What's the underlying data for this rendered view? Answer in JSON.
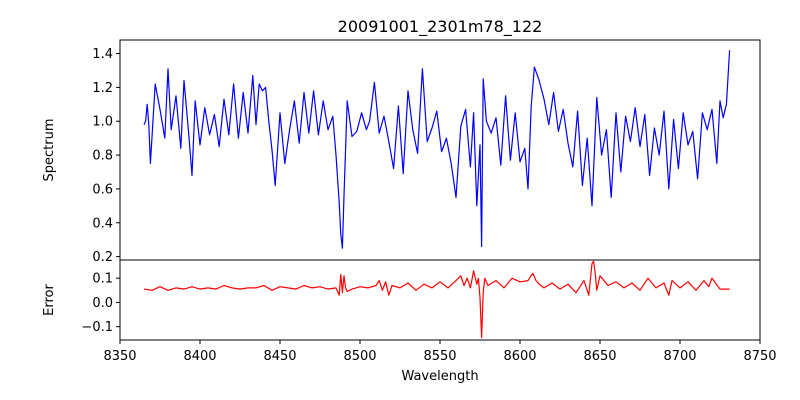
{
  "chart_data": {
    "type": "line",
    "title": "20091001_2301m78_122",
    "xlabel": "Wavelength",
    "xlim": [
      8350,
      8750
    ],
    "xticks": [
      8350,
      8400,
      8450,
      8500,
      8550,
      8600,
      8650,
      8700,
      8750
    ],
    "grid": false,
    "panels": [
      {
        "name": "spectrum",
        "ylabel": "Spectrum",
        "ylim": [
          0.18,
          1.48
        ],
        "yticks": [
          0.2,
          0.4,
          0.6,
          0.8,
          1.0,
          1.2,
          1.4
        ],
        "ytick_labels": [
          "0.2",
          "0.4",
          "0.6",
          "0.8",
          "1.0",
          "1.2",
          "1.4"
        ],
        "color": "#0000ff",
        "x": [
          8365,
          8366,
          8367,
          8368,
          8369,
          8372,
          8375,
          8378,
          8380,
          8382,
          8385,
          8388,
          8390,
          8393,
          8395,
          8397,
          8400,
          8403,
          8406,
          8409,
          8412,
          8415,
          8418,
          8421,
          8424,
          8427,
          8430,
          8433,
          8435,
          8437,
          8439,
          8441,
          8443,
          8445,
          8447,
          8450,
          8453,
          8456,
          8459,
          8462,
          8465,
          8468,
          8471,
          8474,
          8477,
          8480,
          8483,
          8485,
          8487,
          8488,
          8489,
          8490,
          8492,
          8495,
          8498,
          8501,
          8504,
          8506,
          8509,
          8512,
          8515,
          8518,
          8521,
          8524,
          8527,
          8530,
          8533,
          8536,
          8539,
          8542,
          8545,
          8548,
          8551,
          8554,
          8557,
          8560,
          8563,
          8566,
          8569,
          8571,
          8573,
          8575,
          8576,
          8577,
          8579,
          8582,
          8585,
          8588,
          8591,
          8594,
          8597,
          8600,
          8603,
          8605,
          8607,
          8609,
          8612,
          8615,
          8618,
          8621,
          8624,
          8627,
          8630,
          8633,
          8636,
          8639,
          8642,
          8645,
          8648,
          8651,
          8654,
          8657,
          8660,
          8663,
          8666,
          8669,
          8672,
          8675,
          8678,
          8681,
          8684,
          8687,
          8690,
          8693,
          8696,
          8699,
          8702,
          8705,
          8708,
          8711,
          8714,
          8717,
          8720,
          8723,
          8725,
          8727,
          8729,
          8730,
          8731
        ],
        "y": [
          0.98,
          1.0,
          1.1,
          0.98,
          0.75,
          1.22,
          1.07,
          0.9,
          1.31,
          0.95,
          1.15,
          0.84,
          1.24,
          0.92,
          0.68,
          1.12,
          0.86,
          1.08,
          0.92,
          1.04,
          0.85,
          1.13,
          0.92,
          1.22,
          0.9,
          1.17,
          0.93,
          1.27,
          0.98,
          1.22,
          1.18,
          1.2,
          1.0,
          0.83,
          0.62,
          1.05,
          0.75,
          0.95,
          1.12,
          0.87,
          1.17,
          0.93,
          1.18,
          0.92,
          1.12,
          0.95,
          1.03,
          0.8,
          0.52,
          0.33,
          0.25,
          0.56,
          1.12,
          0.91,
          0.94,
          1.05,
          0.95,
          1.0,
          1.23,
          0.93,
          1.03,
          0.88,
          0.72,
          1.09,
          0.69,
          1.18,
          0.95,
          0.81,
          1.31,
          0.88,
          0.96,
          1.06,
          0.82,
          0.9,
          0.75,
          0.55,
          0.97,
          1.07,
          0.73,
          1.05,
          0.5,
          0.86,
          0.26,
          1.25,
          1.0,
          0.93,
          1.02,
          0.74,
          1.15,
          0.77,
          1.05,
          0.76,
          0.84,
          0.6,
          1.09,
          1.32,
          1.24,
          1.13,
          0.98,
          1.17,
          0.94,
          1.07,
          0.87,
          0.73,
          1.06,
          0.62,
          0.9,
          0.5,
          1.14,
          0.8,
          0.95,
          0.55,
          1.05,
          0.7,
          1.03,
          0.88,
          1.08,
          0.85,
          1.04,
          0.68,
          0.96,
          0.8,
          1.06,
          0.6,
          1.01,
          0.72,
          1.05,
          0.86,
          0.94,
          0.66,
          1.05,
          0.95,
          1.07,
          0.75,
          1.12,
          1.02,
          1.1,
          1.26,
          1.42
        ]
      },
      {
        "name": "error",
        "ylabel": "Error",
        "ylim": [
          -0.155,
          0.175
        ],
        "yticks": [
          -0.1,
          0.0,
          0.1
        ],
        "ytick_labels": [
          "−0.1",
          "0.0",
          "0.1"
        ],
        "color": "#ff0000",
        "x": [
          8365,
          8370,
          8375,
          8380,
          8385,
          8390,
          8395,
          8400,
          8405,
          8410,
          8415,
          8420,
          8425,
          8430,
          8435,
          8440,
          8445,
          8450,
          8455,
          8460,
          8465,
          8470,
          8475,
          8480,
          8485,
          8487,
          8488,
          8489,
          8490,
          8491,
          8492,
          8495,
          8500,
          8505,
          8510,
          8512,
          8514,
          8516,
          8518,
          8520,
          8525,
          8530,
          8535,
          8540,
          8545,
          8550,
          8555,
          8560,
          8563,
          8565,
          8567,
          8569,
          8571,
          8573,
          8574,
          8575,
          8576,
          8577,
          8578,
          8580,
          8585,
          8590,
          8595,
          8600,
          8605,
          8608,
          8610,
          8612,
          8615,
          8620,
          8625,
          8630,
          8635,
          8640,
          8643,
          8645,
          8646,
          8647,
          8648,
          8650,
          8655,
          8660,
          8665,
          8670,
          8675,
          8680,
          8685,
          8690,
          8693,
          8695,
          8700,
          8705,
          8710,
          8715,
          8718,
          8720,
          8725,
          8731
        ],
        "y": [
          0.055,
          0.05,
          0.065,
          0.05,
          0.06,
          0.055,
          0.065,
          0.055,
          0.06,
          0.055,
          0.07,
          0.06,
          0.055,
          0.06,
          0.06,
          0.07,
          0.05,
          0.065,
          0.06,
          0.055,
          0.07,
          0.06,
          0.065,
          0.055,
          0.06,
          0.03,
          0.115,
          0.04,
          0.11,
          0.06,
          0.045,
          0.055,
          0.065,
          0.06,
          0.07,
          0.09,
          0.05,
          0.085,
          0.03,
          0.07,
          0.06,
          0.08,
          0.05,
          0.075,
          0.06,
          0.085,
          0.06,
          0.09,
          0.11,
          0.07,
          0.1,
          0.06,
          0.13,
          0.075,
          0.1,
          0.02,
          -0.145,
          0.04,
          0.1,
          0.07,
          0.09,
          0.06,
          0.1,
          0.085,
          0.09,
          0.12,
          0.09,
          0.075,
          0.06,
          0.08,
          0.055,
          0.075,
          0.04,
          0.09,
          0.03,
          0.16,
          0.17,
          0.12,
          0.05,
          0.11,
          0.07,
          0.085,
          0.06,
          0.08,
          0.05,
          0.1,
          0.06,
          0.08,
          0.03,
          0.09,
          0.06,
          0.085,
          0.05,
          0.09,
          0.065,
          0.1,
          0.055,
          0.055
        ]
      }
    ]
  }
}
